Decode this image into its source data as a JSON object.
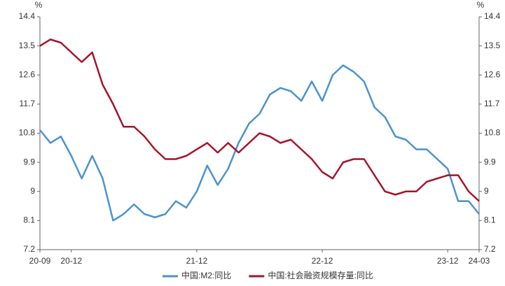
{
  "chart_data": {
    "type": "line",
    "categories": [
      "20-09",
      null,
      null,
      "20-12",
      null,
      null,
      null,
      null,
      null,
      null,
      null,
      null,
      null,
      null,
      null,
      "21-12",
      null,
      null,
      null,
      null,
      null,
      null,
      null,
      null,
      null,
      null,
      null,
      "22-12",
      null,
      null,
      null,
      null,
      null,
      null,
      null,
      null,
      null,
      null,
      null,
      "23-12",
      null,
      null,
      "24-03"
    ],
    "series": [
      {
        "name": "中国:M2:同比",
        "color": "#4b93cc",
        "values": [
          10.9,
          10.5,
          10.7,
          10.1,
          9.4,
          10.1,
          9.4,
          8.1,
          8.3,
          8.6,
          8.3,
          8.2,
          8.3,
          8.7,
          8.5,
          9.0,
          9.8,
          9.2,
          9.7,
          10.5,
          11.1,
          11.4,
          12.0,
          12.2,
          12.1,
          11.8,
          12.4,
          11.8,
          12.6,
          12.9,
          12.7,
          12.4,
          11.6,
          11.3,
          10.7,
          10.6,
          10.3,
          10.3,
          10.0,
          9.7,
          8.7,
          8.7,
          8.3
        ]
      },
      {
        "name": "中国:社会融资规模存量:同比",
        "color": "#a3142b",
        "axis": "y2",
        "values": [
          13.5,
          13.7,
          13.6,
          13.3,
          13.0,
          13.3,
          12.3,
          11.7,
          11.0,
          11.0,
          10.7,
          10.3,
          10.0,
          10.0,
          10.1,
          10.3,
          10.5,
          10.2,
          10.5,
          10.2,
          10.5,
          10.8,
          10.7,
          10.5,
          10.6,
          10.3,
          10.0,
          9.6,
          9.4,
          9.9,
          10.0,
          10.0,
          9.5,
          9.0,
          8.9,
          9.0,
          9.0,
          9.3,
          9.4,
          9.5,
          9.5,
          9.0,
          8.7
        ]
      }
    ],
    "ylabel": "%",
    "y2label": "%",
    "ylim": [
      7.2,
      14.4
    ],
    "yticks": [
      7.2,
      8.1,
      9,
      9.9,
      10.8,
      11.7,
      12.6,
      13.5,
      14.4
    ],
    "y2lim": [
      7.2,
      14.4
    ],
    "y2ticks": [
      7.2,
      8.1,
      9,
      9.9,
      10.8,
      11.7,
      12.6,
      13.5,
      14.4
    ],
    "legend": "bottom"
  }
}
